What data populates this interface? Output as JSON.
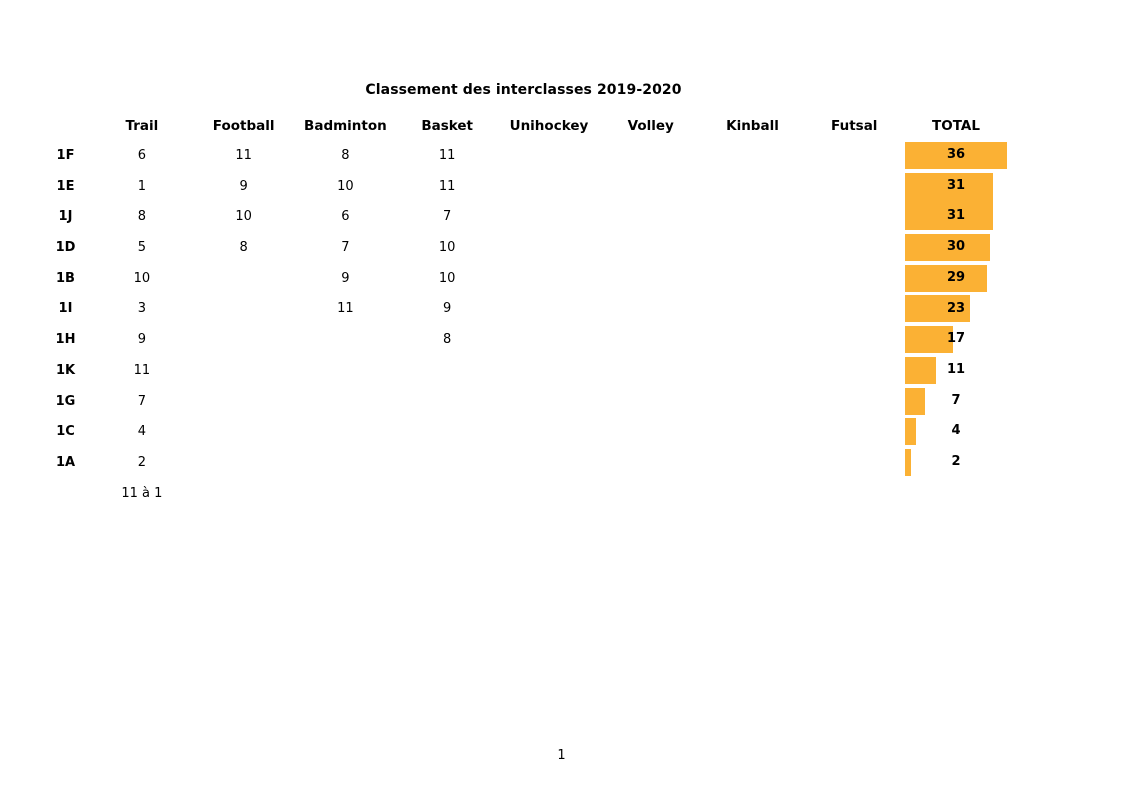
{
  "page": {
    "page_number": "1"
  },
  "chart_data": {
    "type": "table",
    "title": "Classement des interclasses 2019-2020",
    "columns": [
      "Trail",
      "Football",
      "Badminton",
      "Basket",
      "Unihockey",
      "Volley",
      "Kinball",
      "Futsal",
      "TOTAL"
    ],
    "rows": [
      {
        "label": "1F",
        "values": [
          "6",
          "11",
          "8",
          "11",
          "",
          "",
          "",
          ""
        ],
        "total": 36
      },
      {
        "label": "1E",
        "values": [
          "1",
          "9",
          "10",
          "11",
          "",
          "",
          "",
          ""
        ],
        "total": 31
      },
      {
        "label": "1J",
        "values": [
          "8",
          "10",
          "6",
          "7",
          "",
          "",
          "",
          ""
        ],
        "total": 31
      },
      {
        "label": "1D",
        "values": [
          "5",
          "8",
          "7",
          "10",
          "",
          "",
          "",
          ""
        ],
        "total": 30
      },
      {
        "label": "1B",
        "values": [
          "10",
          "",
          "9",
          "10",
          "",
          "",
          "",
          ""
        ],
        "total": 29
      },
      {
        "label": "1I",
        "values": [
          "3",
          "",
          "11",
          "9",
          "",
          "",
          "",
          ""
        ],
        "total": 23
      },
      {
        "label": "1H",
        "values": [
          "9",
          "",
          "",
          "8",
          "",
          "",
          "",
          ""
        ],
        "total": 17
      },
      {
        "label": "1K",
        "values": [
          "11",
          "",
          "",
          "",
          "",
          "",
          "",
          ""
        ],
        "total": 11
      },
      {
        "label": "1G",
        "values": [
          "7",
          "",
          "",
          "",
          "",
          "",
          "",
          ""
        ],
        "total": 7
      },
      {
        "label": "1C",
        "values": [
          "4",
          "",
          "",
          "",
          "",
          "",
          "",
          ""
        ],
        "total": 4
      },
      {
        "label": "1A",
        "values": [
          "2",
          "",
          "",
          "",
          "",
          "",
          "",
          ""
        ],
        "total": 2
      }
    ],
    "footer_row": {
      "label": "",
      "values": [
        "11 à 1",
        "",
        "",
        "",
        "",
        "",
        "",
        ""
      ],
      "total": null
    },
    "bar": {
      "max": 36,
      "color": "#FBB134",
      "merge_down": [
        "1E"
      ],
      "merge_up": [
        "1J"
      ]
    },
    "legend_position": "none",
    "grid": false
  }
}
